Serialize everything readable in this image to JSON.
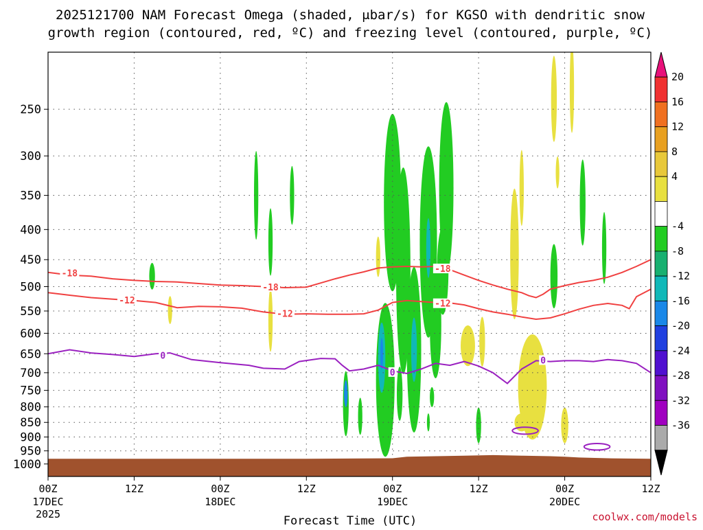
{
  "chart_data": {
    "type": "heatmap",
    "title_line1": "2025121700 NAM Forecast Omega (shaded, μbar/s) for KGSO with dendritic snow",
    "title_line2": "growth region (contoured, red, ºC) and freezing level (contoured, purple, ºC)",
    "xlabel": "Forecast Time (UTC)",
    "credit": "coolwx.com/models",
    "y_levels": [
      250,
      300,
      350,
      400,
      450,
      500,
      550,
      600,
      650,
      700,
      750,
      800,
      850,
      900,
      950,
      1000
    ],
    "y_range": [
      200,
      1050
    ],
    "x_range_hours": [
      0,
      84
    ],
    "x_ticks": [
      {
        "hour": 0,
        "label": "00Z",
        "date": "17DEC",
        "year": "2025"
      },
      {
        "hour": 12,
        "label": "12Z",
        "date": "",
        "year": ""
      },
      {
        "hour": 24,
        "label": "00Z",
        "date": "18DEC",
        "year": ""
      },
      {
        "hour": 36,
        "label": "12Z",
        "date": "",
        "year": ""
      },
      {
        "hour": 48,
        "label": "00Z",
        "date": "19DEC",
        "year": ""
      },
      {
        "hour": 60,
        "label": "12Z",
        "date": "",
        "year": ""
      },
      {
        "hour": 72,
        "label": "00Z",
        "date": "20DEC",
        "year": ""
      },
      {
        "hour": 84,
        "label": "12Z",
        "date": "",
        "year": ""
      }
    ],
    "grid": true,
    "colorbar": {
      "ticks": [
        "20",
        "16",
        "12",
        "8",
        "4",
        "-4",
        "-8",
        "-12",
        "-16",
        "-20",
        "-24",
        "-28",
        "-32",
        "-36"
      ],
      "colors_top_to_bottom": [
        "#e8117a",
        "#f03030",
        "#f07020",
        "#e8a020",
        "#e8c83a",
        "#e8e040",
        "#ffffff",
        "#22cc22",
        "#18b070",
        "#10b8b8",
        "#1a88e8",
        "#2040e0",
        "#5010d0",
        "#8010c0",
        "#a000c0",
        "#aaaaaa",
        "#000000"
      ]
    },
    "contours": [
      {
        "name": "-18",
        "color": "#f04040",
        "points": [
          [
            0,
            473
          ],
          [
            3,
            478
          ],
          [
            6,
            480
          ],
          [
            9,
            485
          ],
          [
            12,
            488
          ],
          [
            15,
            490
          ],
          [
            18,
            491
          ],
          [
            21,
            494
          ],
          [
            24,
            497
          ],
          [
            27,
            498
          ],
          [
            30,
            500
          ],
          [
            33,
            502
          ],
          [
            36,
            501
          ],
          [
            38,
            493
          ],
          [
            40,
            485
          ],
          [
            42,
            478
          ],
          [
            44,
            472
          ],
          [
            46,
            465
          ],
          [
            48,
            463
          ],
          [
            50,
            462
          ],
          [
            52,
            463
          ],
          [
            54,
            462
          ],
          [
            56,
            468
          ],
          [
            58,
            478
          ],
          [
            60,
            488
          ],
          [
            62,
            497
          ],
          [
            64,
            505
          ],
          [
            66,
            512
          ],
          [
            67,
            518
          ],
          [
            68,
            522
          ],
          [
            69,
            515
          ],
          [
            70,
            505
          ],
          [
            72,
            498
          ],
          [
            74,
            492
          ],
          [
            76,
            488
          ],
          [
            78,
            482
          ],
          [
            80,
            473
          ],
          [
            82,
            462
          ],
          [
            84,
            450
          ]
        ],
        "labels": [
          {
            "hour": 3,
            "hPa": 475,
            "text": "-18"
          },
          {
            "hour": 31,
            "hPa": 502,
            "text": "-18"
          },
          {
            "hour": 55,
            "hPa": 467,
            "text": "-18"
          }
        ]
      },
      {
        "name": "-12",
        "color": "#f04040",
        "points": [
          [
            0,
            512
          ],
          [
            3,
            517
          ],
          [
            6,
            522
          ],
          [
            9,
            525
          ],
          [
            12,
            528
          ],
          [
            15,
            532
          ],
          [
            18,
            543
          ],
          [
            21,
            540
          ],
          [
            24,
            541
          ],
          [
            27,
            544
          ],
          [
            30,
            552
          ],
          [
            33,
            557
          ],
          [
            36,
            556
          ],
          [
            39,
            557
          ],
          [
            42,
            557
          ],
          [
            44,
            556
          ],
          [
            46,
            548
          ],
          [
            48,
            532
          ],
          [
            50,
            528
          ],
          [
            52,
            530
          ],
          [
            54,
            532
          ],
          [
            56,
            533
          ],
          [
            58,
            537
          ],
          [
            60,
            545
          ],
          [
            62,
            552
          ],
          [
            64,
            557
          ],
          [
            66,
            563
          ],
          [
            68,
            568
          ],
          [
            70,
            565
          ],
          [
            72,
            556
          ],
          [
            74,
            546
          ],
          [
            76,
            538
          ],
          [
            78,
            534
          ],
          [
            80,
            538
          ],
          [
            81,
            545
          ],
          [
            82,
            520
          ],
          [
            84,
            505
          ]
        ],
        "labels": [
          {
            "hour": 11,
            "hPa": 528,
            "text": "-12"
          },
          {
            "hour": 33,
            "hPa": 557,
            "text": "-12"
          },
          {
            "hour": 55,
            "hPa": 535,
            "text": "-12"
          }
        ]
      },
      {
        "name": "0",
        "color": "#9a20c0",
        "points": [
          [
            0,
            650
          ],
          [
            3,
            640
          ],
          [
            6,
            648
          ],
          [
            9,
            652
          ],
          [
            12,
            657
          ],
          [
            15,
            650
          ],
          [
            17,
            648
          ],
          [
            20,
            665
          ],
          [
            24,
            673
          ],
          [
            28,
            680
          ],
          [
            30,
            688
          ],
          [
            33,
            690
          ],
          [
            35,
            670
          ],
          [
            38,
            662
          ],
          [
            40,
            663
          ],
          [
            41,
            680
          ],
          [
            42,
            695
          ],
          [
            44,
            690
          ],
          [
            46,
            680
          ],
          [
            48,
            695
          ],
          [
            50,
            702
          ],
          [
            52,
            690
          ],
          [
            54,
            675
          ],
          [
            56,
            680
          ],
          [
            58,
            670
          ],
          [
            60,
            682
          ],
          [
            62,
            700
          ],
          [
            64,
            730
          ],
          [
            66,
            690
          ],
          [
            68,
            668
          ],
          [
            70,
            670
          ],
          [
            72,
            668
          ],
          [
            74,
            668
          ],
          [
            76,
            670
          ],
          [
            78,
            665
          ],
          [
            80,
            668
          ],
          [
            82,
            675
          ],
          [
            84,
            700
          ]
        ],
        "labels": [
          {
            "hour": 16,
            "hPa": 656,
            "text": "0"
          },
          {
            "hour": 48,
            "hPa": 700,
            "text": "0"
          },
          {
            "hour": 69,
            "hPa": 668,
            "text": "0"
          }
        ]
      }
    ],
    "shaded_regions": [
      {
        "name": "blob-1",
        "color": "#22cc22",
        "hour": 29,
        "hPa": 350,
        "rx_hours": 0.3,
        "ry_hPa": 60
      },
      {
        "name": "blob-2",
        "color": "#22cc22",
        "hour": 31,
        "hPa": 420,
        "rx_hours": 0.3,
        "ry_hPa": 55
      },
      {
        "name": "blob-3",
        "color": "#22cc22",
        "hour": 34,
        "hPa": 350,
        "rx_hours": 0.3,
        "ry_hPa": 40
      },
      {
        "name": "blob-4",
        "color": "#22cc22",
        "hour": 14.5,
        "hPa": 480,
        "rx_hours": 0.4,
        "ry_hPa": 25
      },
      {
        "name": "blob-5",
        "color": "#e8e040",
        "hour": 17,
        "hPa": 548,
        "rx_hours": 0.3,
        "ry_hPa": 30
      },
      {
        "name": "blob-6",
        "color": "#e8e040",
        "hour": 31,
        "hPa": 570,
        "rx_hours": 0.3,
        "ry_hPa": 70
      },
      {
        "name": "blob-7",
        "color": "#e8e040",
        "hour": 46,
        "hPa": 445,
        "rx_hours": 0.3,
        "ry_hPa": 35
      },
      {
        "name": "blob-8",
        "color": "#22cc22",
        "hour": 41.5,
        "hPa": 790,
        "rx_hours": 0.4,
        "ry_hPa": 100
      },
      {
        "name": "blob-9",
        "color": "#1a88e8",
        "hour": 41.5,
        "hPa": 760,
        "rx_hours": 0.25,
        "ry_hPa": 40
      },
      {
        "name": "blob-10",
        "color": "#22cc22",
        "hour": 43.5,
        "hPa": 830,
        "rx_hours": 0.3,
        "ry_hPa": 60
      },
      {
        "name": "blob-11",
        "color": "#22cc22",
        "hour": 47,
        "hPa": 720,
        "rx_hours": 1.3,
        "ry_hPa": 210
      },
      {
        "name": "blob-12",
        "color": "#10b8b8",
        "hour": 46.5,
        "hPa": 660,
        "rx_hours": 0.5,
        "ry_hPa": 90
      },
      {
        "name": "blob-13",
        "color": "#1a88e8",
        "hour": 46.5,
        "hPa": 650,
        "rx_hours": 0.2,
        "ry_hPa": 40
      },
      {
        "name": "blob-14",
        "color": "#22cc22",
        "hour": 48,
        "hPa": 360,
        "rx_hours": 1.2,
        "ry_hPa": 120
      },
      {
        "name": "blob-15",
        "color": "#22cc22",
        "hour": 49.5,
        "hPa": 470,
        "rx_hours": 1.0,
        "ry_hPa": 180
      },
      {
        "name": "blob-16",
        "color": "#22cc22",
        "hour": 49,
        "hPa": 760,
        "rx_hours": 0.4,
        "ry_hPa": 80
      },
      {
        "name": "blob-17",
        "color": "#22cc22",
        "hour": 51,
        "hPa": 640,
        "rx_hours": 1.0,
        "ry_hPa": 200
      },
      {
        "name": "blob-18",
        "color": "#10b8b8",
        "hour": 51,
        "hPa": 640,
        "rx_hours": 0.4,
        "ry_hPa": 80
      },
      {
        "name": "blob-19",
        "color": "#22cc22",
        "hour": 53,
        "hPa": 420,
        "rx_hours": 1.2,
        "ry_hPa": 150
      },
      {
        "name": "blob-20",
        "color": "#10b8b8",
        "hour": 53,
        "hPa": 430,
        "rx_hours": 0.3,
        "ry_hPa": 50
      },
      {
        "name": "blob-21",
        "color": "#22cc22",
        "hour": 54,
        "hPa": 580,
        "rx_hours": 0.8,
        "ry_hPa": 120
      },
      {
        "name": "blob-22",
        "color": "#22cc22",
        "hour": 55.5,
        "hPa": 340,
        "rx_hours": 1.0,
        "ry_hPa": 110
      },
      {
        "name": "blob-23",
        "color": "#22cc22",
        "hour": 55,
        "hPa": 470,
        "rx_hours": 0.8,
        "ry_hPa": 80
      },
      {
        "name": "blob-24",
        "color": "#22cc22",
        "hour": 53.5,
        "hPa": 770,
        "rx_hours": 0.3,
        "ry_hPa": 30
      },
      {
        "name": "blob-25",
        "color": "#22cc22",
        "hour": 53,
        "hPa": 850,
        "rx_hours": 0.2,
        "ry_hPa": 30
      },
      {
        "name": "blob-26",
        "color": "#e8e040",
        "hour": 58.5,
        "hPa": 630,
        "rx_hours": 1.0,
        "ry_hPa": 50
      },
      {
        "name": "blob-27",
        "color": "#e8e040",
        "hour": 60.5,
        "hPa": 620,
        "rx_hours": 0.4,
        "ry_hPa": 60
      },
      {
        "name": "blob-28",
        "color": "#22cc22",
        "hour": 60,
        "hPa": 860,
        "rx_hours": 0.35,
        "ry_hPa": 60
      },
      {
        "name": "blob-29",
        "color": "#e8e040",
        "hour": 65,
        "hPa": 440,
        "rx_hours": 0.6,
        "ry_hPa": 110
      },
      {
        "name": "blob-30",
        "color": "#e8e040",
        "hour": 66,
        "hPa": 340,
        "rx_hours": 0.3,
        "ry_hPa": 50
      },
      {
        "name": "blob-31",
        "color": "#e8e040",
        "hour": 67.5,
        "hPa": 740,
        "rx_hours": 2.0,
        "ry_hPa": 150
      },
      {
        "name": "blob-32",
        "color": "#e8e040",
        "hour": 66,
        "hPa": 850,
        "rx_hours": 1.0,
        "ry_hPa": 30
      },
      {
        "name": "blob-33",
        "color": "#e8e040",
        "hour": 72,
        "hPa": 860,
        "rx_hours": 0.5,
        "ry_hPa": 60
      },
      {
        "name": "blob-34",
        "color": "#e8e040",
        "hour": 70.5,
        "hPa": 240,
        "rx_hours": 0.4,
        "ry_hPa": 40
      },
      {
        "name": "blob-35",
        "color": "#e8e040",
        "hour": 73,
        "hPa": 230,
        "rx_hours": 0.3,
        "ry_hPa": 40
      },
      {
        "name": "blob-36",
        "color": "#e8e040",
        "hour": 71,
        "hPa": 320,
        "rx_hours": 0.25,
        "ry_hPa": 20
      },
      {
        "name": "blob-37",
        "color": "#22cc22",
        "hour": 74.5,
        "hPa": 360,
        "rx_hours": 0.4,
        "ry_hPa": 60
      },
      {
        "name": "blob-38",
        "color": "#22cc22",
        "hour": 70.5,
        "hPa": 480,
        "rx_hours": 0.5,
        "ry_hPa": 60
      },
      {
        "name": "blob-39",
        "color": "#22cc22",
        "hour": 77.5,
        "hPa": 430,
        "rx_hours": 0.3,
        "ry_hPa": 60
      }
    ],
    "closed_contours": [
      {
        "name": "ring-1",
        "color": "#9a20c0",
        "hour": 66.5,
        "hPa": 878,
        "rx_hours": 1.8,
        "ry_hPa": 12
      },
      {
        "name": "ring-2",
        "color": "#9a20c0",
        "hour": 76.5,
        "hPa": 935,
        "rx_hours": 1.8,
        "ry_hPa": 12
      }
    ],
    "terrain_color": "#a0522d",
    "terrain_top": [
      [
        0,
        980
      ],
      [
        12,
        980
      ],
      [
        24,
        980
      ],
      [
        36,
        980
      ],
      [
        48,
        978
      ],
      [
        50,
        972
      ],
      [
        54,
        970
      ],
      [
        58,
        968
      ],
      [
        62,
        966
      ],
      [
        66,
        968
      ],
      [
        70,
        970
      ],
      [
        72,
        972
      ],
      [
        74,
        975
      ],
      [
        78,
        978
      ],
      [
        84,
        980
      ]
    ]
  }
}
